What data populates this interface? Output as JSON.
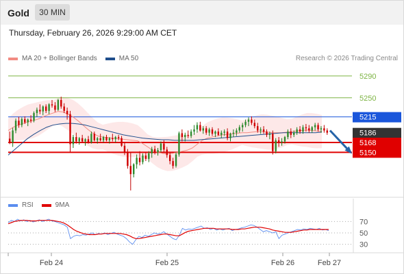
{
  "header": {
    "symbol": "Gold",
    "timeframe": "30 MIN",
    "datetime": "Thursday, February 26, 2026 9:29:00 AM CET"
  },
  "legend": {
    "items": [
      {
        "label": "MA 20 + Bollinger Bands",
        "color": "#f28b82"
      },
      {
        "label": "MA 50",
        "color": "#1f4e8c"
      }
    ],
    "copyright": "Research © 2026 Trading Central"
  },
  "rsi_legend": {
    "items": [
      {
        "label": "RSI",
        "color": "#5b8def"
      },
      {
        "label": "9MA",
        "color": "#e00000"
      }
    ]
  },
  "chart_data": [
    {
      "type": "candlestick",
      "title": "",
      "x_ticks": [
        "Feb 24",
        "Feb 25",
        "Feb 26",
        "Feb 27"
      ],
      "y_ticks": [
        5290,
        5250
      ],
      "ylim": [
        5065,
        5310
      ],
      "levels": [
        {
          "value": 5290,
          "label": "5290",
          "kind": "resistance",
          "color": "#7cb342"
        },
        {
          "value": 5250,
          "label": "5250",
          "kind": "resistance",
          "color": "#7cb342"
        },
        {
          "value": 5215,
          "label": "5215",
          "kind": "pivot",
          "color": "#1a56db"
        },
        {
          "value": 5186,
          "label": "5186",
          "kind": "last-price",
          "color": "#333333"
        },
        {
          "value": 5168,
          "label": "5168",
          "kind": "support",
          "color": "#e00000"
        },
        {
          "value": 5150,
          "label": "5150",
          "kind": "support",
          "color": "#e00000"
        }
      ],
      "candles": [
        [
          5175,
          5188,
          5165,
          5168
        ],
        [
          5168,
          5195,
          5160,
          5190
        ],
        [
          5190,
          5212,
          5185,
          5208
        ],
        [
          5208,
          5215,
          5195,
          5200
        ],
        [
          5200,
          5214,
          5196,
          5211
        ],
        [
          5211,
          5216,
          5202,
          5205
        ],
        [
          5205,
          5212,
          5198,
          5210
        ],
        [
          5210,
          5218,
          5204,
          5208
        ],
        [
          5208,
          5225,
          5205,
          5222
        ],
        [
          5222,
          5232,
          5215,
          5228
        ],
        [
          5228,
          5238,
          5220,
          5225
        ],
        [
          5225,
          5236,
          5218,
          5234
        ],
        [
          5234,
          5238,
          5222,
          5226
        ],
        [
          5226,
          5240,
          5220,
          5238
        ],
        [
          5238,
          5246,
          5232,
          5236
        ],
        [
          5236,
          5242,
          5224,
          5228
        ],
        [
          5228,
          5248,
          5226,
          5246
        ],
        [
          5246,
          5252,
          5230,
          5234
        ],
        [
          5234,
          5240,
          5222,
          5226
        ],
        [
          5226,
          5232,
          5210,
          5220
        ],
        [
          5220,
          5226,
          5150,
          5165
        ],
        [
          5165,
          5182,
          5158,
          5178
        ],
        [
          5178,
          5186,
          5166,
          5170
        ],
        [
          5170,
          5178,
          5164,
          5176
        ],
        [
          5176,
          5182,
          5168,
          5170
        ],
        [
          5170,
          5176,
          5162,
          5174
        ],
        [
          5174,
          5180,
          5166,
          5168
        ],
        [
          5168,
          5188,
          5166,
          5184
        ],
        [
          5184,
          5188,
          5170,
          5172
        ],
        [
          5172,
          5178,
          5166,
          5176
        ],
        [
          5176,
          5184,
          5170,
          5172
        ],
        [
          5172,
          5180,
          5168,
          5178
        ],
        [
          5178,
          5182,
          5170,
          5172
        ],
        [
          5172,
          5178,
          5166,
          5176
        ],
        [
          5176,
          5184,
          5170,
          5174
        ],
        [
          5174,
          5180,
          5168,
          5178
        ],
        [
          5178,
          5182,
          5172,
          5176
        ],
        [
          5176,
          5180,
          5160,
          5162
        ],
        [
          5162,
          5168,
          5145,
          5150
        ],
        [
          5150,
          5156,
          5120,
          5125
        ],
        [
          5125,
          5150,
          5080,
          5110
        ],
        [
          5110,
          5130,
          5104,
          5128
        ],
        [
          5128,
          5146,
          5120,
          5140
        ],
        [
          5140,
          5152,
          5126,
          5132
        ],
        [
          5132,
          5148,
          5128,
          5144
        ],
        [
          5144,
          5150,
          5134,
          5138
        ],
        [
          5138,
          5152,
          5132,
          5148
        ],
        [
          5148,
          5160,
          5140,
          5156
        ],
        [
          5156,
          5162,
          5146,
          5150
        ],
        [
          5150,
          5158,
          5144,
          5154
        ],
        [
          5154,
          5170,
          5150,
          5166
        ],
        [
          5166,
          5172,
          5150,
          5155
        ],
        [
          5155,
          5160,
          5140,
          5145
        ],
        [
          5145,
          5150,
          5128,
          5134
        ],
        [
          5134,
          5140,
          5120,
          5125
        ],
        [
          5125,
          5150,
          5122,
          5146
        ],
        [
          5146,
          5188,
          5142,
          5185
        ],
        [
          5185,
          5192,
          5170,
          5178
        ],
        [
          5178,
          5186,
          5170,
          5182
        ],
        [
          5182,
          5190,
          5176,
          5180
        ],
        [
          5180,
          5192,
          5176,
          5188
        ],
        [
          5188,
          5200,
          5182,
          5192
        ],
        [
          5192,
          5205,
          5186,
          5200
        ],
        [
          5200,
          5206,
          5188,
          5190
        ],
        [
          5190,
          5198,
          5184,
          5194
        ],
        [
          5194,
          5198,
          5182,
          5186
        ],
        [
          5186,
          5195,
          5180,
          5192
        ],
        [
          5192,
          5196,
          5180,
          5184
        ],
        [
          5184,
          5190,
          5178,
          5188
        ],
        [
          5188,
          5194,
          5180,
          5182
        ],
        [
          5182,
          5190,
          5176,
          5186
        ],
        [
          5186,
          5192,
          5180,
          5188
        ],
        [
          5188,
          5194,
          5172,
          5176
        ],
        [
          5176,
          5186,
          5170,
          5184
        ],
        [
          5184,
          5192,
          5178,
          5186
        ],
        [
          5186,
          5194,
          5180,
          5190
        ],
        [
          5190,
          5200,
          5186,
          5196
        ],
        [
          5196,
          5204,
          5188,
          5200
        ],
        [
          5200,
          5210,
          5196,
          5206
        ],
        [
          5206,
          5214,
          5198,
          5210
        ],
        [
          5210,
          5216,
          5200,
          5204
        ],
        [
          5204,
          5210,
          5194,
          5198
        ],
        [
          5198,
          5204,
          5186,
          5190
        ],
        [
          5190,
          5196,
          5184,
          5192
        ],
        [
          5192,
          5198,
          5184,
          5188
        ],
        [
          5188,
          5192,
          5178,
          5182
        ],
        [
          5182,
          5188,
          5174,
          5184
        ],
        [
          5184,
          5190,
          5146,
          5152
        ],
        [
          5152,
          5176,
          5148,
          5172
        ],
        [
          5172,
          5178,
          5160,
          5168
        ],
        [
          5168,
          5176,
          5162,
          5170
        ],
        [
          5170,
          5180,
          5166,
          5178
        ],
        [
          5178,
          5192,
          5174,
          5188
        ],
        [
          5188,
          5194,
          5176,
          5182
        ],
        [
          5182,
          5190,
          5178,
          5186
        ],
        [
          5186,
          5196,
          5182,
          5192
        ],
        [
          5192,
          5198,
          5184,
          5188
        ],
        [
          5188,
          5200,
          5184,
          5196
        ],
        [
          5196,
          5202,
          5188,
          5194
        ],
        [
          5194,
          5200,
          5186,
          5190
        ],
        [
          5190,
          5198,
          5186,
          5196
        ],
        [
          5196,
          5204,
          5190,
          5200
        ],
        [
          5200,
          5204,
          5188,
          5192
        ],
        [
          5192,
          5198,
          5186,
          5194
        ],
        [
          5194,
          5200,
          5186,
          5190
        ],
        [
          5190,
          5194,
          5182,
          5186
        ]
      ],
      "ma20": [
        5190,
        5196,
        5200,
        5203,
        5206,
        5208,
        5211,
        5215,
        5219,
        5222,
        5225,
        5224,
        5220,
        5215,
        5208,
        5200,
        5192,
        5185,
        5180,
        5178,
        5177,
        5176,
        5175,
        5174,
        5173,
        5172,
        5171,
        5166,
        5160,
        5154,
        5150,
        5148,
        5147,
        5148,
        5150,
        5152,
        5154,
        5158,
        5165,
        5172,
        5176,
        5178,
        5180,
        5182,
        5183,
        5184,
        5185,
        5186,
        5186,
        5187,
        5188,
        5188,
        5187,
        5186,
        5186,
        5186,
        5187,
        5188,
        5189,
        5190,
        5191,
        5190,
        5189,
        5188
      ],
      "ma50": [
        5145,
        5155,
        5165,
        5175,
        5183,
        5190,
        5196,
        5200,
        5202,
        5203,
        5203,
        5202,
        5200,
        5197,
        5194,
        5191,
        5188,
        5185,
        5182,
        5180,
        5178,
        5176,
        5175,
        5174,
        5173,
        5173,
        5172,
        5172,
        5172,
        5172,
        5173,
        5174,
        5175,
        5176,
        5177,
        5178,
        5179,
        5180,
        5181,
        5182,
        5183,
        5184,
        5185,
        5186,
        5186,
        5186,
        5186,
        5186,
        5186,
        5187
      ],
      "forecast": {
        "from": 5190,
        "to": 5150,
        "color": "#2563a8"
      }
    },
    {
      "type": "line",
      "title": "",
      "y_ticks": [
        70,
        50,
        30
      ],
      "ylim": [
        20,
        80
      ],
      "series": [
        {
          "name": "RSI",
          "color": "#5b8def",
          "values": [
            68,
            72,
            70,
            74,
            71,
            73,
            70,
            72,
            69,
            71,
            73,
            70,
            72,
            74,
            71,
            70,
            68,
            66,
            64,
            60,
            40,
            44,
            46,
            45,
            47,
            46,
            48,
            50,
            47,
            49,
            48,
            50,
            47,
            49,
            51,
            48,
            46,
            44,
            40,
            34,
            30,
            38,
            44,
            42,
            46,
            44,
            47,
            50,
            48,
            49,
            52,
            48,
            44,
            40,
            38,
            46,
            58,
            55,
            57,
            56,
            58,
            60,
            62,
            58,
            59,
            56,
            58,
            55,
            57,
            55,
            57,
            58,
            54,
            56,
            57,
            59,
            60,
            62,
            64,
            63,
            60,
            56,
            52,
            54,
            52,
            50,
            52,
            40,
            46,
            48,
            50,
            52,
            54,
            56,
            55,
            57,
            56,
            58,
            57,
            56,
            58,
            55,
            56,
            54
          ]
        },
        {
          "name": "9MA",
          "color": "#e00000",
          "values": [
            66,
            68,
            70,
            71,
            72,
            72,
            72,
            71,
            71,
            71,
            72,
            72,
            72,
            72,
            72,
            71,
            70,
            69,
            67,
            64,
            60,
            56,
            53,
            51,
            49,
            48,
            47,
            47,
            47,
            48,
            48,
            49,
            49,
            49,
            49,
            49,
            49,
            48,
            47,
            45,
            42,
            40,
            40,
            41,
            42,
            43,
            44,
            45,
            46,
            47,
            48,
            48,
            47,
            46,
            45,
            45,
            48,
            51,
            53,
            54,
            55,
            56,
            57,
            58,
            58,
            58,
            58,
            57,
            57,
            57,
            57,
            57,
            56,
            56,
            56,
            57,
            57,
            58,
            59,
            60,
            60,
            60,
            59,
            58,
            57,
            55,
            54,
            53,
            52,
            51,
            51,
            51,
            52,
            53,
            54,
            55,
            55,
            56,
            56,
            56,
            56,
            56,
            56,
            56
          ]
        }
      ]
    }
  ]
}
